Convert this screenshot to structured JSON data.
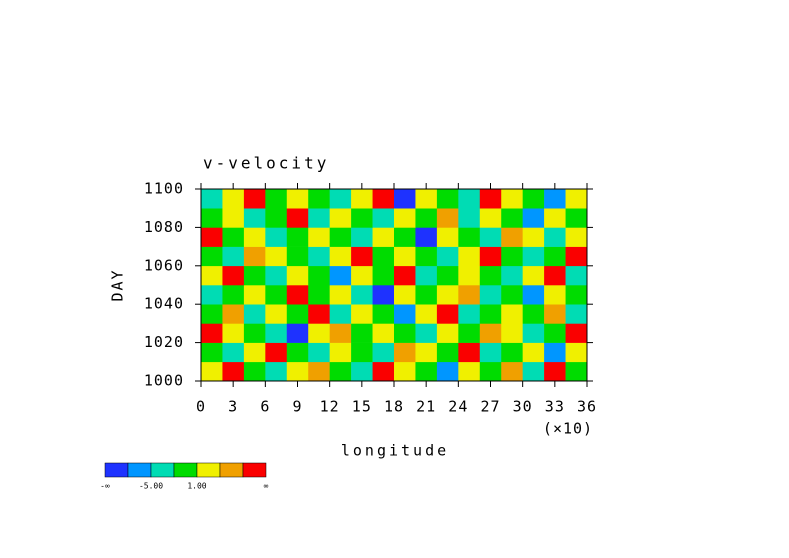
{
  "chart_data": {
    "type": "heatmap",
    "title": "v-velocity",
    "xlabel": "longitude",
    "ylabel": "DAY",
    "x_scale_note": "(×10)",
    "xlim": [
      0,
      36
    ],
    "ylim": [
      1000,
      1100
    ],
    "xticks": [
      0,
      3,
      6,
      9,
      12,
      15,
      18,
      21,
      24,
      27,
      30,
      33,
      36
    ],
    "yticks": [
      1000,
      1020,
      1040,
      1060,
      1080,
      1100
    ],
    "z": [
      [
        2,
        8,
        0,
        -3,
        2,
        5,
        0,
        -3,
        8,
        2,
        0,
        -6,
        2,
        0,
        5,
        -3,
        8,
        0
      ],
      [
        0,
        -3,
        2,
        8,
        0,
        -3,
        2,
        0,
        -3,
        5,
        2,
        0,
        8,
        -3,
        0,
        2,
        -6,
        2
      ],
      [
        8,
        2,
        0,
        -3,
        -9,
        2,
        5,
        0,
        2,
        0,
        -3,
        2,
        0,
        5,
        2,
        -3,
        0,
        8
      ],
      [
        0,
        5,
        -3,
        2,
        0,
        8,
        -3,
        2,
        0,
        -6,
        2,
        8,
        -3,
        0,
        2,
        0,
        5,
        -3
      ],
      [
        -3,
        0,
        2,
        0,
        8,
        0,
        2,
        -3,
        -9,
        2,
        0,
        2,
        5,
        -3,
        0,
        -6,
        2,
        0
      ],
      [
        2,
        8,
        0,
        -3,
        2,
        0,
        -6,
        2,
        0,
        8,
        -3,
        0,
        2,
        0,
        -3,
        2,
        8,
        -3
      ],
      [
        0,
        -3,
        5,
        2,
        0,
        -3,
        2,
        8,
        0,
        2,
        0,
        -3,
        2,
        8,
        0,
        -3,
        0,
        8
      ],
      [
        8,
        0,
        2,
        -3,
        0,
        2,
        0,
        -3,
        2,
        0,
        -9,
        2,
        0,
        -3,
        5,
        2,
        -3,
        2
      ],
      [
        0,
        2,
        -3,
        0,
        8,
        -3,
        2,
        0,
        -3,
        2,
        0,
        5,
        -3,
        2,
        0,
        -6,
        2,
        0
      ],
      [
        -3,
        2,
        8,
        0,
        2,
        0,
        -3,
        2,
        8,
        -9,
        2,
        0,
        -3,
        8,
        2,
        0,
        -6,
        2
      ]
    ],
    "colorbar": {
      "levels": [
        -8,
        -5,
        -2,
        1,
        4,
        7
      ],
      "colors": [
        "#1e32ff",
        "#0096ff",
        "#00dcb4",
        "#00dc00",
        "#f0f000",
        "#f0a000",
        "#fa0000"
      ],
      "low_label": "-∞",
      "high_label": "∞",
      "ticks": [
        {
          "value": -5,
          "label": "-5.00"
        },
        {
          "value": 1,
          "label": "1.00"
        }
      ]
    }
  }
}
